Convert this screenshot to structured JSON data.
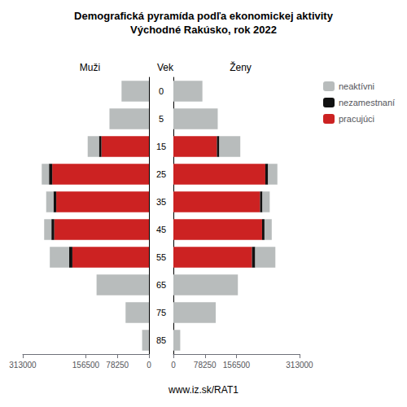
{
  "chart_data": [
    {
      "type": "bar",
      "orientation": "horizontal",
      "stacked": true,
      "title": "Demografická pyramída podľa ekonomickej aktivity",
      "subtitle": "Východné Rakúsko, rok 2022",
      "xlabel": "Muži",
      "ylabel": "Vek",
      "categories": [
        "85",
        "75",
        "65",
        "55",
        "45",
        "35",
        "25",
        "15",
        "5",
        "0"
      ],
      "series": [
        {
          "name": "pracujúci",
          "color": "#cc2222",
          "values": [
            0,
            0,
            0,
            190000,
            235000,
            230000,
            240000,
            118000,
            0,
            0
          ]
        },
        {
          "name": "nezamestnaní",
          "color": "#111111",
          "values": [
            0,
            0,
            0,
            8000,
            7000,
            7000,
            8000,
            6000,
            0,
            0
          ]
        },
        {
          "name": "neaktívni",
          "color": "#b8bcbc",
          "values": [
            17000,
            58000,
            130000,
            48000,
            18000,
            18000,
            18000,
            28000,
            98000,
            68000
          ]
        }
      ],
      "xlim": [
        313000,
        0
      ],
      "xticks": [
        313000,
        156500,
        78250,
        0
      ],
      "grid": false,
      "legend": "upper right",
      "annotations": [
        {
          "text": "www.iz.sk/RAT1"
        }
      ]
    },
    {
      "type": "bar",
      "orientation": "horizontal",
      "stacked": true,
      "xlabel": "Ženy",
      "categories": [
        "85",
        "75",
        "65",
        "55",
        "45",
        "35",
        "25",
        "15",
        "5",
        "0"
      ],
      "series": [
        {
          "name": "pracujúci",
          "color": "#cc2222",
          "values": [
            0,
            0,
            0,
            195000,
            220000,
            215000,
            228000,
            108000,
            0,
            0
          ]
        },
        {
          "name": "nezamestnaní",
          "color": "#111111",
          "values": [
            0,
            0,
            0,
            8000,
            6000,
            6000,
            7000,
            6000,
            0,
            0
          ]
        },
        {
          "name": "neaktívni",
          "color": "#b8bcbc",
          "values": [
            17000,
            105000,
            160000,
            50000,
            18000,
            18000,
            23000,
            52000,
            110000,
            72000
          ]
        }
      ],
      "xlim": [
        0,
        313000
      ],
      "xticks": [
        0,
        78250,
        156500,
        313000
      ],
      "grid": false
    }
  ]
}
